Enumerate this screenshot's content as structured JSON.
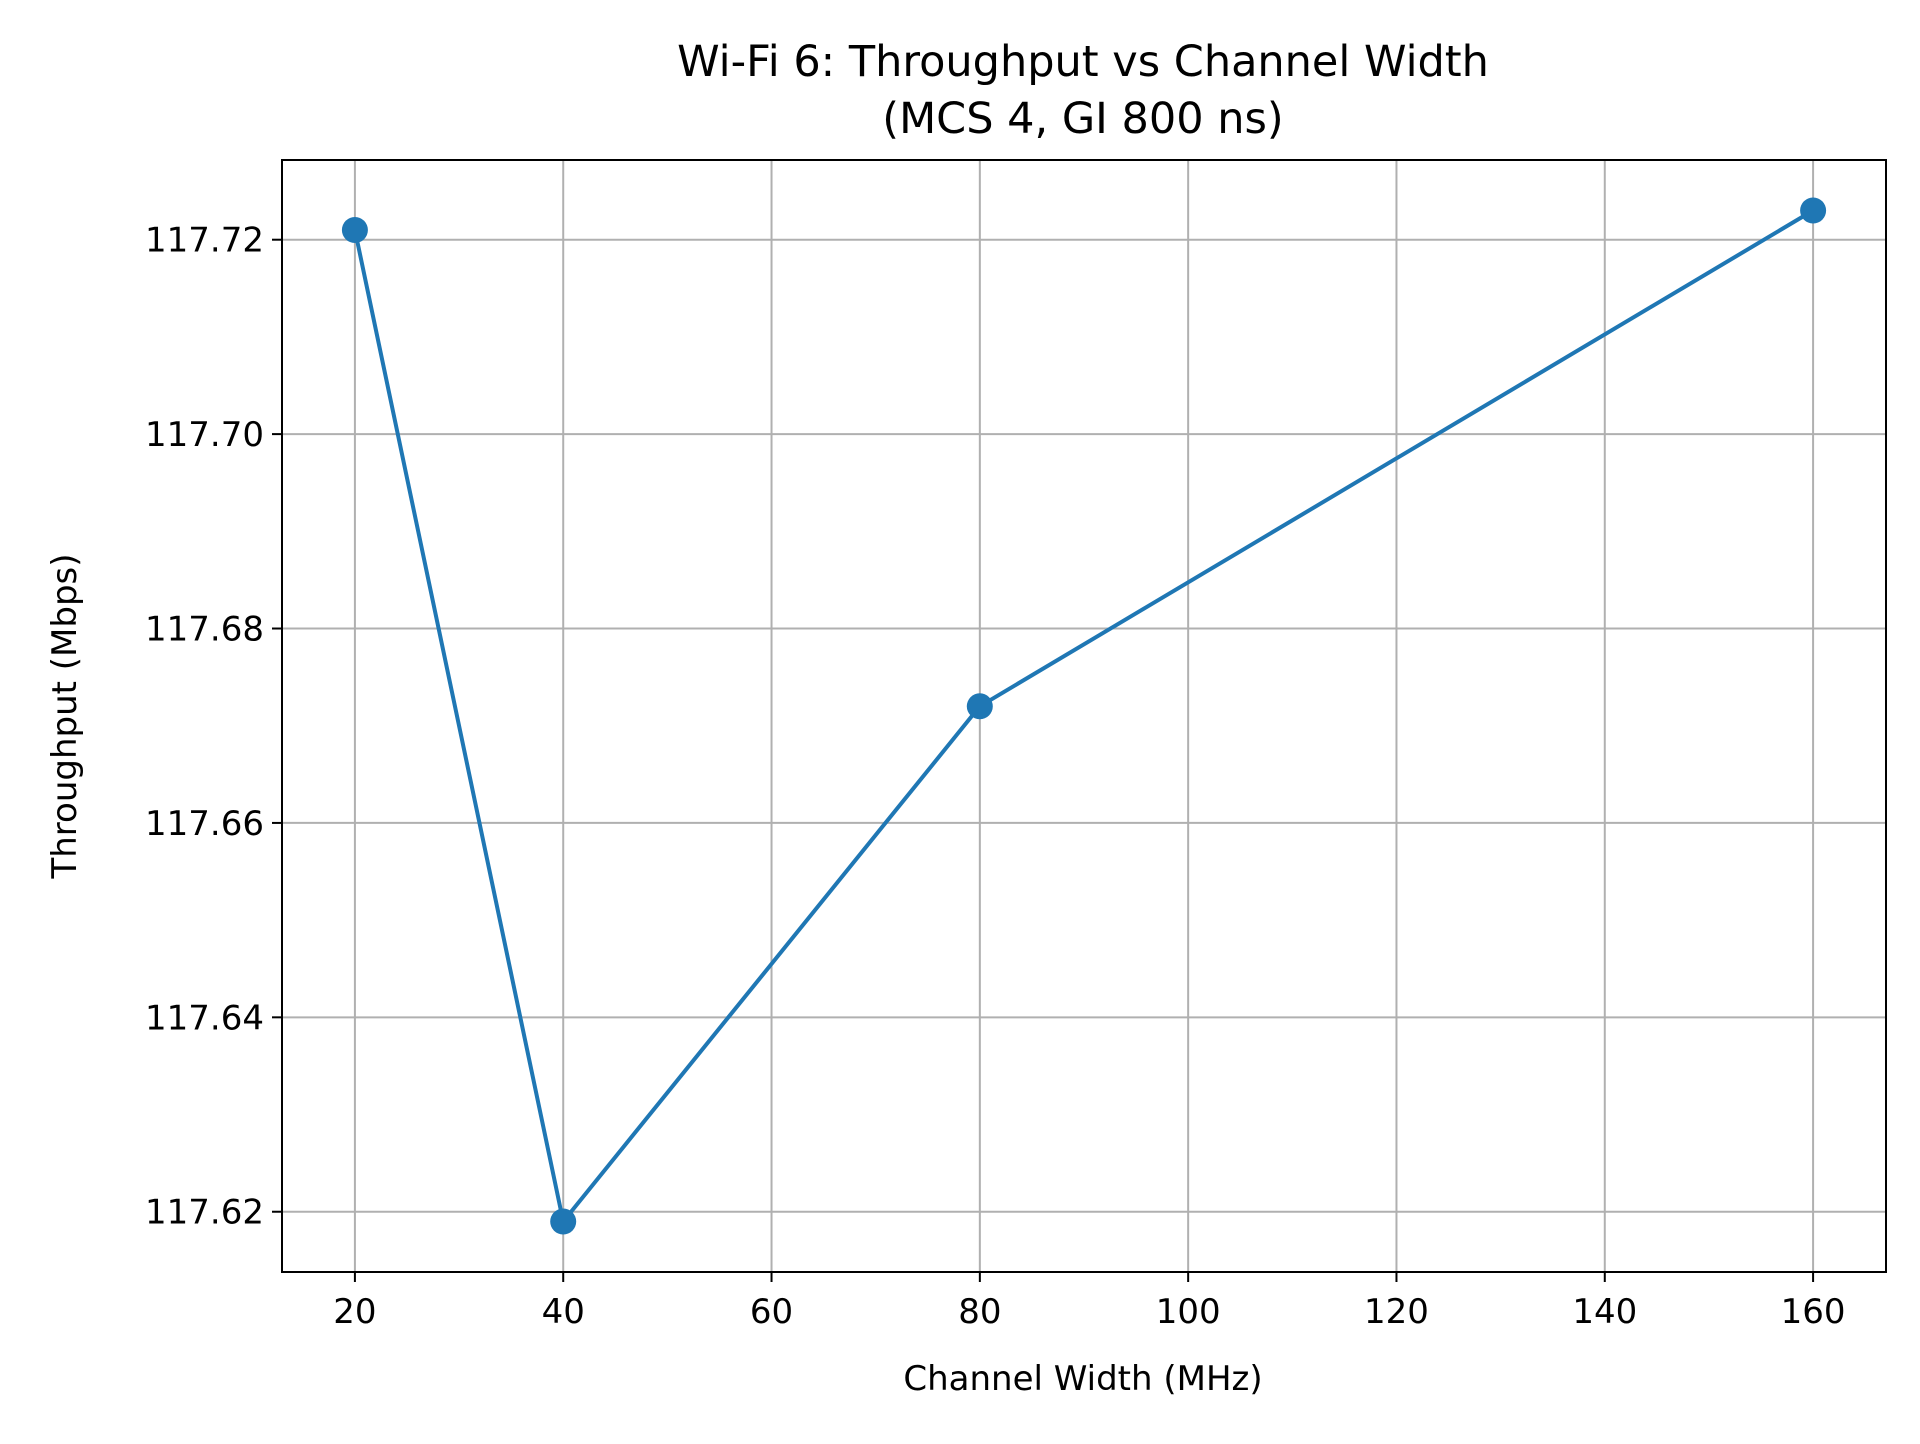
{
  "chart_data": {
    "type": "line",
    "title": "Wi-Fi 6: Throughput vs Channel Width",
    "subtitle": "(MCS 4, GI 800 ns)",
    "xlabel": "Channel Width (MHz)",
    "ylabel": "Throughput (Mbps)",
    "xlim": [
      13,
      167
    ],
    "ylim": [
      117.6138,
      117.7282
    ],
    "x_ticks": [
      20,
      40,
      60,
      80,
      100,
      120,
      140,
      160
    ],
    "y_ticks": [
      117.62,
      117.64,
      117.66,
      117.68,
      117.7,
      117.72
    ],
    "y_tick_labels": [
      "117.62",
      "117.64",
      "117.66",
      "117.68",
      "117.70",
      "117.72"
    ],
    "grid": true,
    "series": [
      {
        "x": [
          20,
          40,
          80,
          160
        ],
        "values": [
          117.721,
          117.619,
          117.672,
          117.723
        ],
        "color": "#1f77b4",
        "marker": "circle"
      }
    ]
  }
}
